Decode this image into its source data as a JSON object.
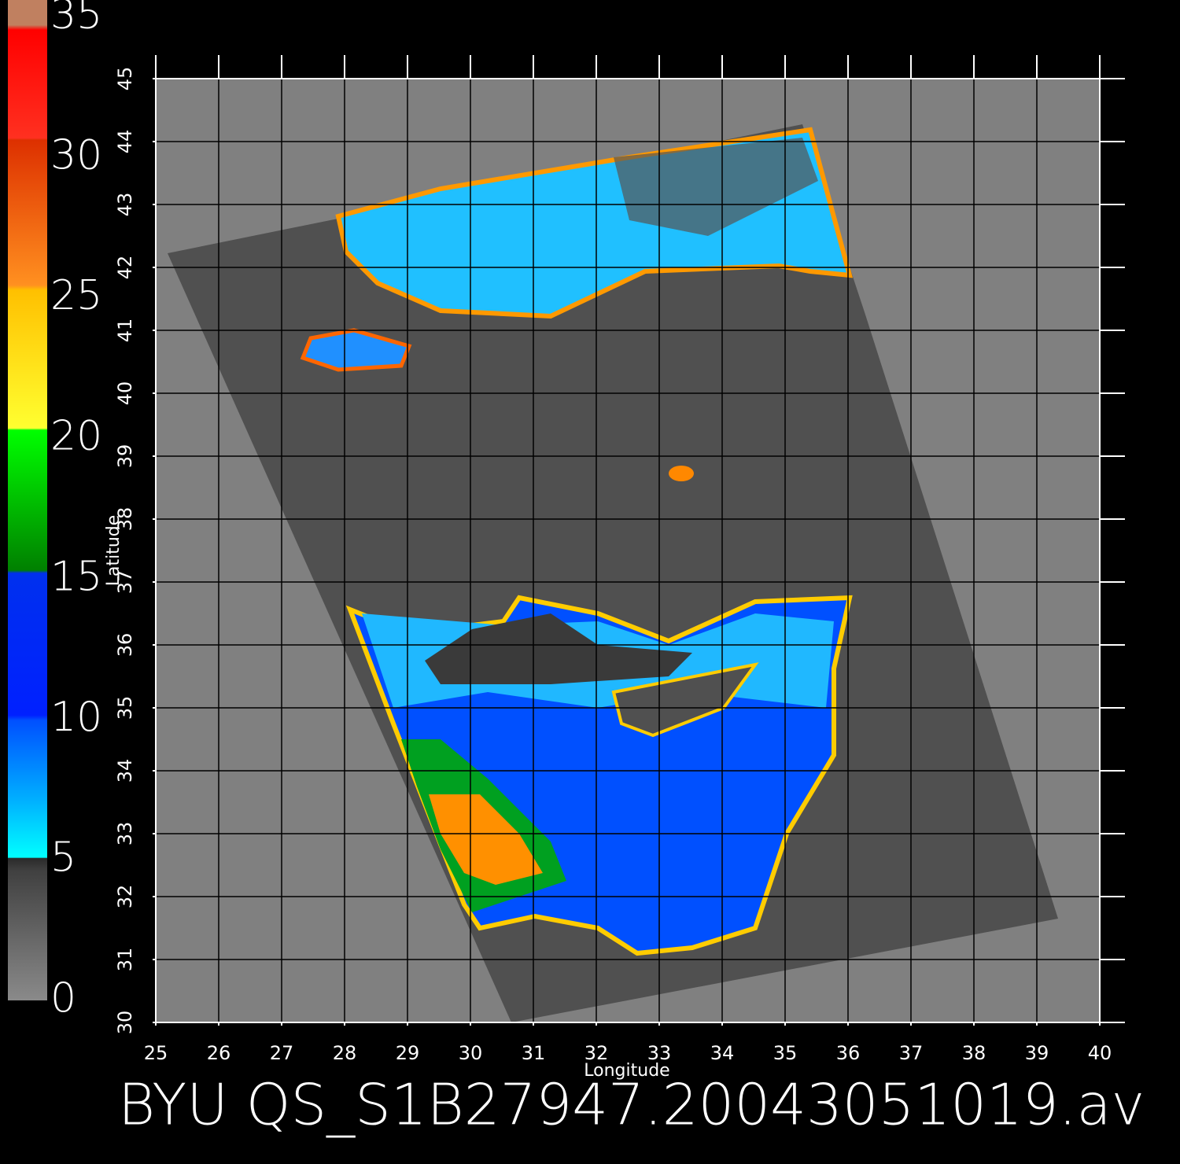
{
  "title": "BYU QS_S1B27947.20043051019.av",
  "colorbar": {
    "lim": [
      0,
      35
    ],
    "ticks": [
      0,
      5,
      10,
      15,
      20,
      25,
      30,
      35
    ]
  },
  "x_axis": {
    "label": "Longitude",
    "lim": [
      25,
      40
    ],
    "ticks": [
      25,
      26,
      27,
      28,
      29,
      30,
      31,
      32,
      33,
      34,
      35,
      36,
      37,
      38,
      39,
      40
    ]
  },
  "y_axis": {
    "label": "Latitude",
    "lim": [
      30,
      45
    ],
    "ticks": [
      30,
      31,
      32,
      33,
      34,
      35,
      36,
      37,
      38,
      39,
      40,
      41,
      42,
      43,
      44,
      45
    ]
  }
}
